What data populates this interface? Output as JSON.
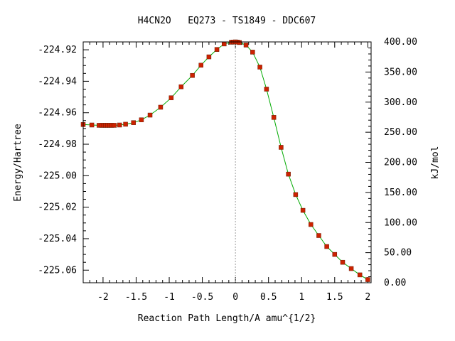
{
  "chart_data": {
    "type": "line",
    "title": "H4CN2O   EQ273 - TS1849 - DDC607",
    "xlabel": "Reaction Path Length/A amu^{1/2}",
    "ylabel": "Energy/Hartree",
    "y2label": "kJ/mol",
    "xlim": [
      -2.3,
      2.05
    ],
    "ylim": [
      -225.068,
      -224.915
    ],
    "y2lim": [
      0,
      400
    ],
    "x_ticks": [
      -2,
      -1.5,
      -1,
      -0.5,
      0,
      0.5,
      1,
      1.5,
      2
    ],
    "x_tick_labels": [
      "-2",
      "-1.5",
      "-1",
      "-0.5",
      "0",
      "0.5",
      "1",
      "1.5",
      "2"
    ],
    "y_ticks": [
      -224.92,
      -224.94,
      -224.96,
      -224.98,
      -225.0,
      -225.02,
      -225.04,
      -225.06
    ],
    "y_tick_labels": [
      "-224.92",
      "-224.94",
      "-224.96",
      "-224.98",
      "-225.00",
      "-225.02",
      "-225.04",
      "-225.06"
    ],
    "y2_ticks": [
      0,
      50,
      100,
      150,
      200,
      250,
      300,
      350,
      400
    ],
    "y2_tick_labels": [
      "0.00",
      "50.00",
      "100.00",
      "150.00",
      "200.00",
      "250.00",
      "300.00",
      "350.00",
      "400.00"
    ],
    "grid": false,
    "ts_marker_x": 0,
    "line_color": "#00aa00",
    "marker_color": "#cc2200",
    "series": [
      {
        "x": [
          -2.3,
          -2.17,
          -2.06,
          -2.02,
          -1.99,
          -1.96,
          -1.93,
          -1.9,
          -1.87,
          -1.83,
          -1.75,
          -1.66,
          -1.54,
          -1.42,
          -1.29,
          -1.13,
          -0.97,
          -0.82,
          -0.65,
          -0.52,
          -0.4,
          -0.28,
          -0.17,
          -0.06,
          -0.03,
          0,
          0.03,
          0.06,
          0.16,
          0.26,
          0.37,
          0.47,
          0.58,
          0.69,
          0.8,
          0.91,
          1.02,
          1.14,
          1.26,
          1.38,
          1.5,
          1.62,
          1.75,
          1.88,
          2.0
        ],
        "y": [
          -224.9675,
          -224.9678,
          -224.968,
          -224.968,
          -224.968,
          -224.968,
          -224.968,
          -224.968,
          -224.968,
          -224.968,
          -224.9678,
          -224.9673,
          -224.9663,
          -224.9645,
          -224.9615,
          -224.9565,
          -224.9505,
          -224.9435,
          -224.9363,
          -224.9298,
          -224.9245,
          -224.9198,
          -224.9163,
          -224.9152,
          -224.9151,
          -224.915,
          -224.9151,
          -224.9154,
          -224.917,
          -224.9215,
          -224.931,
          -224.945,
          -224.963,
          -224.982,
          -224.999,
          -225.012,
          -225.022,
          -225.031,
          -225.038,
          -225.045,
          -225.05,
          -225.055,
          -225.059,
          -225.063,
          -225.066
        ]
      }
    ]
  }
}
